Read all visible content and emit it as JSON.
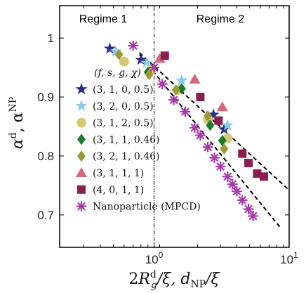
{
  "chart_data": {
    "type": "scatter",
    "x_scale": "log",
    "xlim": [
      0.2,
      10
    ],
    "ylim": [
      0.645,
      1.055
    ],
    "xlabel": "2R_g^d/ξ, d_NP/ξ",
    "ylabel": "α^d, α^NP",
    "x_ticks": [
      {
        "value": 1,
        "label": "10^0"
      },
      {
        "value": 10,
        "label": "10^1"
      }
    ],
    "y_ticks": [
      {
        "value": 1.0,
        "label": "1"
      },
      {
        "value": 0.9,
        "label": "0.9"
      },
      {
        "value": 0.8,
        "label": "0.8"
      },
      {
        "value": 0.7,
        "label": "0.7"
      }
    ],
    "regime_divider_x": 1,
    "regions": [
      {
        "label": "Regime 1"
      },
      {
        "label": "Regime 2"
      }
    ],
    "legend": {
      "header": "(f, s, g, χ)",
      "placement": "left"
    },
    "series": [
      {
        "name": "(3, 1, 0, 0.5)",
        "marker": "star",
        "color": "#2b2f8c",
        "points": [
          [
            0.47,
            0.982
          ],
          [
            0.8,
            0.963
          ],
          [
            2.75,
            0.87
          ],
          [
            3.3,
            0.845
          ]
        ]
      },
      {
        "name": "(3, 2, 0, 0.5)",
        "marker": "star",
        "color": "#87ceeb",
        "points": [
          [
            0.52,
            0.977
          ],
          [
            0.88,
            0.958
          ],
          [
            1.6,
            0.928
          ],
          [
            3.5,
            0.852
          ]
        ]
      },
      {
        "name": "(3, 1, 2, 0.5)",
        "marker": "circle",
        "color": "#d9c874",
        "points": [
          [
            0.6,
            0.96
          ],
          [
            0.95,
            0.945
          ],
          [
            1.5,
            0.912
          ],
          [
            2.5,
            0.862
          ],
          [
            3.5,
            0.83
          ]
        ]
      },
      {
        "name": "(3, 1, 1, 0.46)",
        "marker": "diamond",
        "color": "#1d7a2a",
        "points": [
          [
            0.9,
            0.942
          ],
          [
            1.6,
            0.914
          ],
          [
            2.6,
            0.852
          ],
          [
            3.2,
            0.826
          ]
        ]
      },
      {
        "name": "(3, 2, 1, 0.46)",
        "marker": "diamond",
        "color": "#9c9a36",
        "points": [
          [
            0.55,
            0.972
          ],
          [
            0.92,
            0.938
          ],
          [
            1.45,
            0.912
          ],
          [
            2.5,
            0.868
          ],
          [
            3.3,
            0.812
          ]
        ]
      },
      {
        "name": "(3, 1, 1, 1)",
        "marker": "triangle",
        "color": "#d46a7e",
        "points": [
          [
            1.1,
            0.965
          ],
          [
            2.0,
            0.93
          ],
          [
            3.2,
            0.883
          ]
        ]
      },
      {
        "name": "(4, 0, 1, 1)",
        "marker": "square",
        "color": "#8b1e4f",
        "points": [
          [
            1.2,
            0.97
          ],
          [
            2.2,
            0.9
          ],
          [
            3.0,
            0.86
          ],
          [
            4.5,
            0.804
          ],
          [
            5.0,
            0.788
          ],
          [
            5.8,
            0.77
          ],
          [
            6.5,
            0.765
          ]
        ]
      },
      {
        "name": "Nanoparticle (MPCD)",
        "marker": "asterisk",
        "color": "#a63aa8",
        "points": [
          [
            0.7,
            0.987
          ],
          [
            1.0,
            0.95
          ],
          [
            1.15,
            0.922
          ],
          [
            1.4,
            0.895
          ],
          [
            1.7,
            0.875
          ],
          [
            2.0,
            0.848
          ],
          [
            2.2,
            0.835
          ],
          [
            2.5,
            0.815
          ],
          [
            2.8,
            0.797
          ],
          [
            3.1,
            0.782
          ],
          [
            3.5,
            0.765
          ],
          [
            3.8,
            0.752
          ],
          [
            4.1,
            0.74
          ],
          [
            4.5,
            0.725
          ],
          [
            5.0,
            0.71
          ],
          [
            5.4,
            0.698
          ]
        ]
      }
    ],
    "fit_lines": [
      {
        "style": "dashed",
        "color": "#000000",
        "points": [
          [
            0.78,
            0.975
          ],
          [
            10,
            0.742
          ]
        ]
      },
      {
        "style": "dashed",
        "color": "#000000",
        "points": [
          [
            0.78,
            0.972
          ],
          [
            8.5,
            0.68
          ]
        ]
      }
    ]
  }
}
